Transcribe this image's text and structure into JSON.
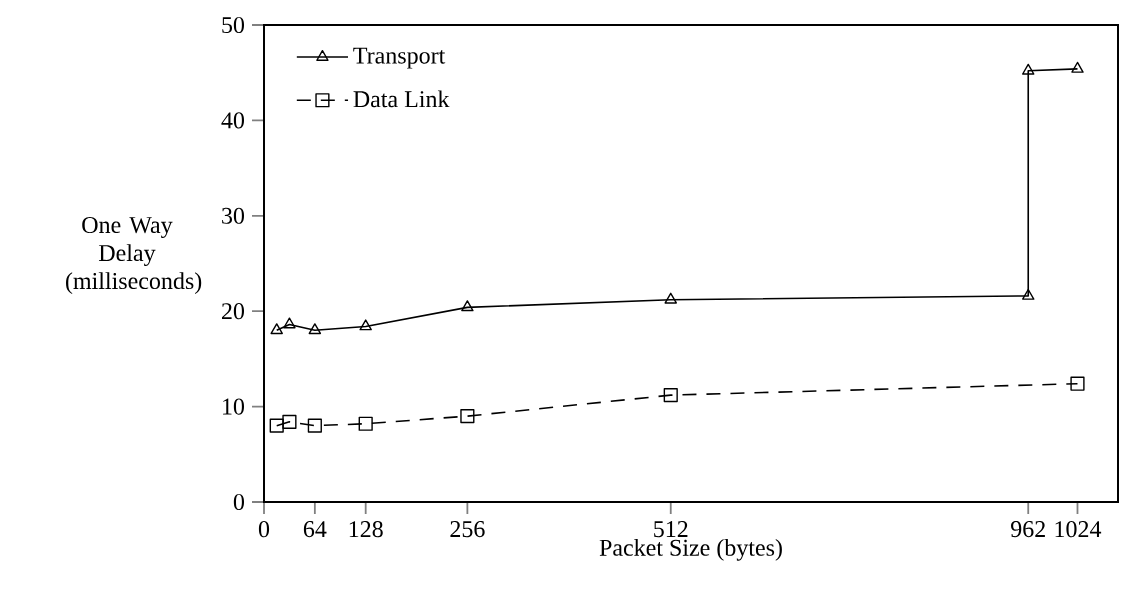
{
  "chart_data": {
    "type": "line",
    "xlabel": "Packet Size (bytes)",
    "ylabel": "One Way Delay (milliseconds)",
    "xlim": [
      0,
      1075
    ],
    "ylim": [
      0,
      50
    ],
    "xticks": [
      0,
      64,
      128,
      256,
      512,
      962,
      1024
    ],
    "yticks": [
      0,
      10,
      20,
      30,
      40,
      50
    ],
    "legend": "top left",
    "series": [
      {
        "name": "Transport",
        "color": "#000000",
        "marker": "triangle",
        "line_style": "solid",
        "x": [
          16,
          32,
          64,
          128,
          256,
          512,
          962,
          962,
          1024
        ],
        "values": [
          18.0,
          18.6,
          18.0,
          18.4,
          20.4,
          21.2,
          21.6,
          45.2,
          45.4
        ]
      },
      {
        "name": "Data Link",
        "color": "#000000",
        "marker": "square",
        "line_style": "dashed",
        "x": [
          16,
          32,
          64,
          128,
          256,
          512,
          1024
        ],
        "values": [
          8.0,
          8.4,
          8.0,
          8.2,
          9.0,
          11.2,
          12.4
        ]
      }
    ]
  }
}
